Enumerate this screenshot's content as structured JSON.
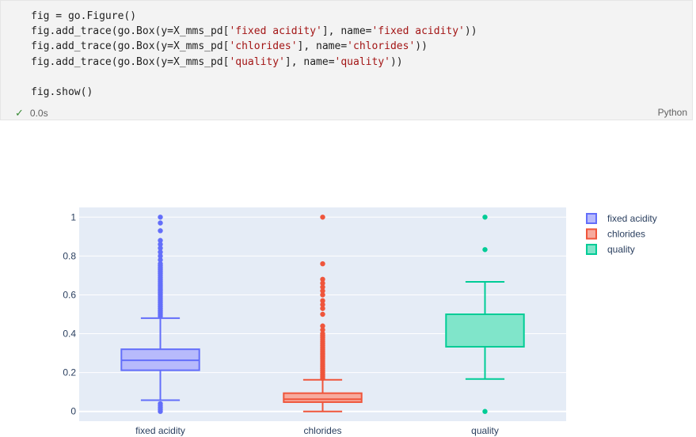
{
  "cell": {
    "code_lines": [
      [
        {
          "t": "fig = go.Figure()",
          "s": "plain"
        }
      ],
      [
        {
          "t": "fig.add_trace(go.Box(y=X_mms_pd[",
          "s": "plain"
        },
        {
          "t": "'fixed acidity'",
          "s": "str"
        },
        {
          "t": "], name=",
          "s": "plain"
        },
        {
          "t": "'fixed acidity'",
          "s": "str"
        },
        {
          "t": "))",
          "s": "plain"
        }
      ],
      [
        {
          "t": "fig.add_trace(go.Box(y=X_mms_pd[",
          "s": "plain"
        },
        {
          "t": "'chlorides'",
          "s": "str"
        },
        {
          "t": "], name=",
          "s": "plain"
        },
        {
          "t": "'chlorides'",
          "s": "str"
        },
        {
          "t": "))",
          "s": "plain"
        }
      ],
      [
        {
          "t": "fig.add_trace(go.Box(y=X_mms_pd[",
          "s": "plain"
        },
        {
          "t": "'quality'",
          "s": "str"
        },
        {
          "t": "], name=",
          "s": "plain"
        },
        {
          "t": "'quality'",
          "s": "str"
        },
        {
          "t": "))",
          "s": "plain"
        }
      ],
      [
        {
          "t": "",
          "s": "plain"
        }
      ],
      [
        {
          "t": "fig.show()",
          "s": "plain"
        }
      ]
    ],
    "exec_time": "0.0s",
    "language": "Python",
    "status_icon": "check-icon"
  },
  "chart_data": {
    "type": "box",
    "ylim": [
      -0.05,
      1.05
    ],
    "yticks": [
      0,
      0.2,
      0.4,
      0.6,
      0.8,
      1
    ],
    "ytick_labels": [
      "0",
      "0.2",
      "0.4",
      "0.6",
      "0.8",
      "1"
    ],
    "grid": true,
    "legend_position": "top-right",
    "categories": [
      "fixed acidity",
      "chlorides",
      "quality"
    ],
    "series": [
      {
        "name": "fixed acidity",
        "color": "#636efa",
        "fill": "#b7bafc",
        "q1": 0.212,
        "median": 0.263,
        "q3": 0.32,
        "lowerfence": 0.058,
        "upperfence": 0.48,
        "outliers": [
          0.0,
          0.01,
          0.02,
          0.03,
          0.04,
          0.49,
          0.5,
          0.51,
          0.52,
          0.53,
          0.54,
          0.55,
          0.56,
          0.57,
          0.58,
          0.59,
          0.6,
          0.61,
          0.62,
          0.63,
          0.64,
          0.65,
          0.66,
          0.67,
          0.68,
          0.69,
          0.7,
          0.71,
          0.72,
          0.73,
          0.74,
          0.75,
          0.76,
          0.78,
          0.8,
          0.82,
          0.84,
          0.86,
          0.88,
          0.93,
          0.97,
          1.0
        ]
      },
      {
        "name": "chlorides",
        "color": "#ef553b",
        "fill": "#f7aa9d",
        "q1": 0.048,
        "median": 0.063,
        "q3": 0.094,
        "lowerfence": 0.0,
        "upperfence": 0.163,
        "outliers": [
          0.17,
          0.18,
          0.19,
          0.2,
          0.21,
          0.22,
          0.23,
          0.24,
          0.25,
          0.26,
          0.27,
          0.28,
          0.29,
          0.3,
          0.31,
          0.32,
          0.33,
          0.34,
          0.35,
          0.36,
          0.37,
          0.38,
          0.39,
          0.4,
          0.42,
          0.44,
          0.5,
          0.53,
          0.55,
          0.57,
          0.6,
          0.62,
          0.64,
          0.66,
          0.68,
          0.76,
          1.0
        ]
      },
      {
        "name": "quality",
        "color": "#00cc96",
        "fill": "#80e5ca",
        "q1": 0.333,
        "median": 0.5,
        "q3": 0.5,
        "lowerfence": 0.167,
        "upperfence": 0.667,
        "outliers": [
          0.0,
          0.833,
          1.0
        ]
      }
    ]
  }
}
